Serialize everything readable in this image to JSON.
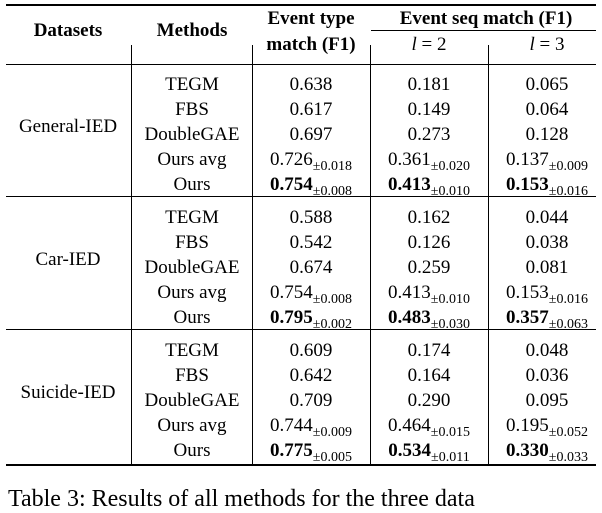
{
  "header": {
    "datasets": "Datasets",
    "methods": "Methods",
    "event_type_line1": "Event type",
    "event_type_line2": "match (F1)",
    "event_seq": "Event seq match (F1)",
    "l2_var": "l",
    "l2_eq": " = 2",
    "l3_var": "l",
    "l3_eq": " = 3"
  },
  "groups": [
    {
      "dataset": "General-IED",
      "rows": [
        {
          "method": "TEGM",
          "c1": {
            "v": "0.638"
          },
          "c2": {
            "v": "0.181"
          },
          "c3": {
            "v": "0.065"
          }
        },
        {
          "method": "FBS",
          "c1": {
            "v": "0.617"
          },
          "c2": {
            "v": "0.149"
          },
          "c3": {
            "v": "0.064"
          }
        },
        {
          "method": "DoubleGAE",
          "c1": {
            "v": "0.697"
          },
          "c2": {
            "v": "0.273"
          },
          "c3": {
            "v": "0.128"
          }
        },
        {
          "method": "Ours avg",
          "c1": {
            "v": "0.726",
            "s": "±0.018"
          },
          "c2": {
            "v": "0.361",
            "s": "±0.020"
          },
          "c3": {
            "v": "0.137",
            "s": "±0.009"
          }
        },
        {
          "method": "Ours",
          "c1": {
            "v": "0.754",
            "s": "±0.008",
            "b": true
          },
          "c2": {
            "v": "0.413",
            "s": "±0.010",
            "b": true
          },
          "c3": {
            "v": "0.153",
            "s": "±0.016",
            "b": true
          }
        }
      ]
    },
    {
      "dataset": "Car-IED",
      "rows": [
        {
          "method": "TEGM",
          "c1": {
            "v": "0.588"
          },
          "c2": {
            "v": "0.162"
          },
          "c3": {
            "v": "0.044"
          }
        },
        {
          "method": "FBS",
          "c1": {
            "v": "0.542"
          },
          "c2": {
            "v": "0.126"
          },
          "c3": {
            "v": "0.038"
          }
        },
        {
          "method": "DoubleGAE",
          "c1": {
            "v": "0.674"
          },
          "c2": {
            "v": "0.259"
          },
          "c3": {
            "v": "0.081"
          }
        },
        {
          "method": "Ours avg",
          "c1": {
            "v": "0.754",
            "s": "±0.008"
          },
          "c2": {
            "v": "0.413",
            "s": "±0.010"
          },
          "c3": {
            "v": "0.153",
            "s": "±0.016"
          }
        },
        {
          "method": "Ours",
          "c1": {
            "v": "0.795",
            "s": "±0.002",
            "b": true
          },
          "c2": {
            "v": "0.483",
            "s": "±0.030",
            "b": true
          },
          "c3": {
            "v": "0.357",
            "s": "±0.063",
            "b": true
          }
        }
      ]
    },
    {
      "dataset": "Suicide-IED",
      "rows": [
        {
          "method": "TEGM",
          "c1": {
            "v": "0.609"
          },
          "c2": {
            "v": "0.174"
          },
          "c3": {
            "v": "0.048"
          }
        },
        {
          "method": "FBS",
          "c1": {
            "v": "0.642"
          },
          "c2": {
            "v": "0.164"
          },
          "c3": {
            "v": "0.036"
          }
        },
        {
          "method": "DoubleGAE",
          "c1": {
            "v": "0.709"
          },
          "c2": {
            "v": "0.290"
          },
          "c3": {
            "v": "0.095"
          }
        },
        {
          "method": "Ours avg",
          "c1": {
            "v": "0.744",
            "s": "±0.009"
          },
          "c2": {
            "v": "0.464",
            "s": "±0.015"
          },
          "c3": {
            "v": "0.195",
            "s": "±0.052"
          }
        },
        {
          "method": "Ours",
          "c1": {
            "v": "0.775",
            "s": "±0.005",
            "b": true
          },
          "c2": {
            "v": "0.534",
            "s": "±0.011",
            "b": true
          },
          "c3": {
            "v": "0.330",
            "s": "±0.033",
            "b": true
          }
        }
      ]
    }
  ],
  "caption": "Table 3: Results of all methods for the three data"
}
